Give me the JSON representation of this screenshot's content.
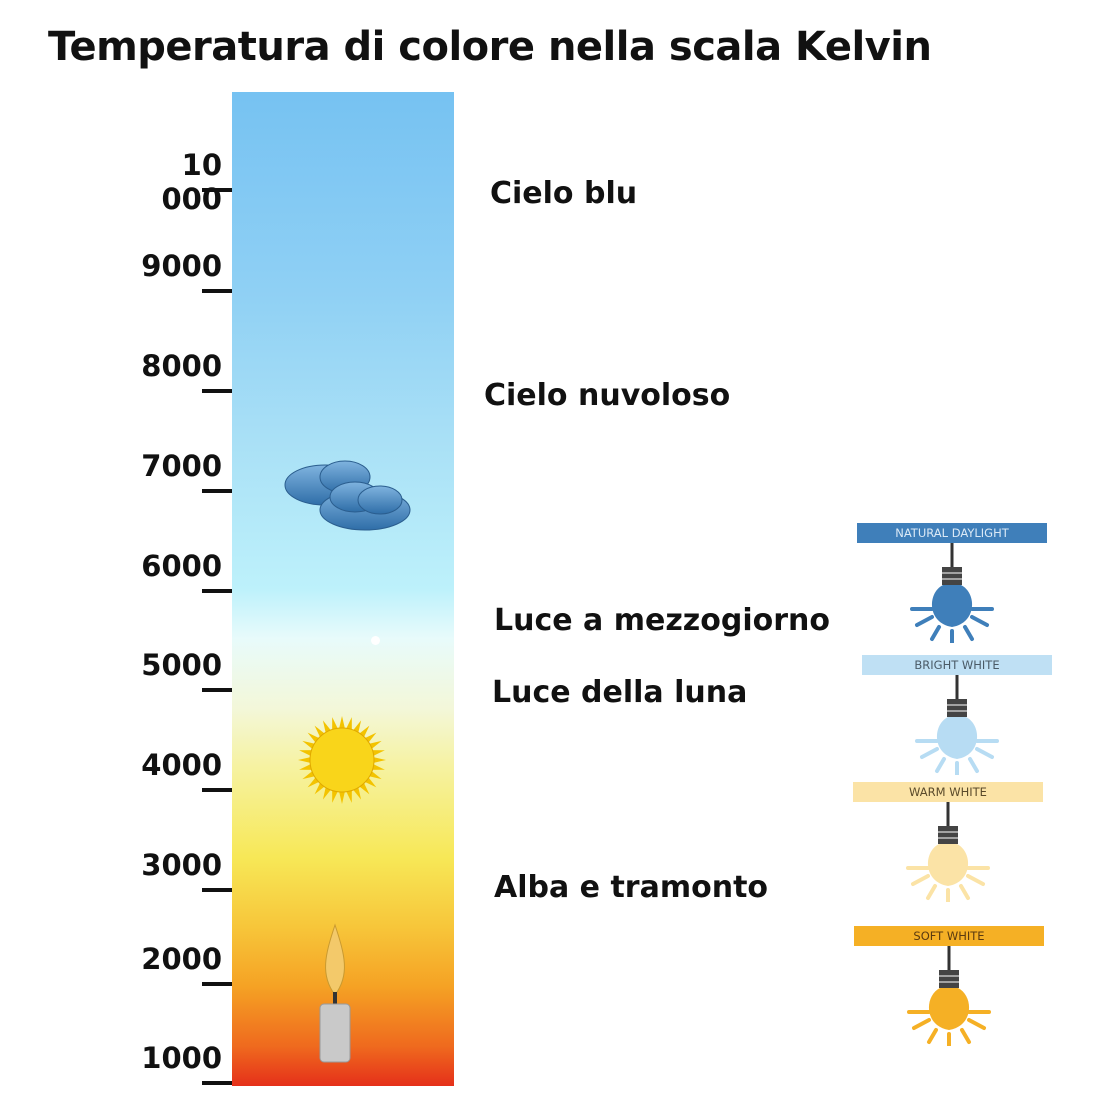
{
  "title": "Temperatura di colore nella scala Kelvin",
  "scale": {
    "ticks": [
      "10 000",
      "9000",
      "8000",
      "7000",
      "6000",
      "5000",
      "4000",
      "3000",
      "2000",
      "1000"
    ]
  },
  "categories": [
    "Cielo blu",
    "Cielo nuvoloso",
    "Luce a mezzogiorno",
    "Luce della luna",
    "Alba e tramonto"
  ],
  "bulbs": [
    {
      "label": "NATURAL DAYLIGHT",
      "band_color": "#3f7fba",
      "text_color": "#dbe9f6",
      "bulb_color": "#3f7fba"
    },
    {
      "label": "BRIGHT WHITE",
      "band_color": "#bfe0f4",
      "text_color": "#4a5a66",
      "bulb_color": "#b7dcf3"
    },
    {
      "label": "WARM WHITE",
      "band_color": "#fbe3a6",
      "text_color": "#5a4a2a",
      "bulb_color": "#fbe3a6"
    },
    {
      "label": "SOFT WHITE",
      "band_color": "#f5b025",
      "text_color": "#5a3a10",
      "bulb_color": "#f5b025"
    }
  ]
}
